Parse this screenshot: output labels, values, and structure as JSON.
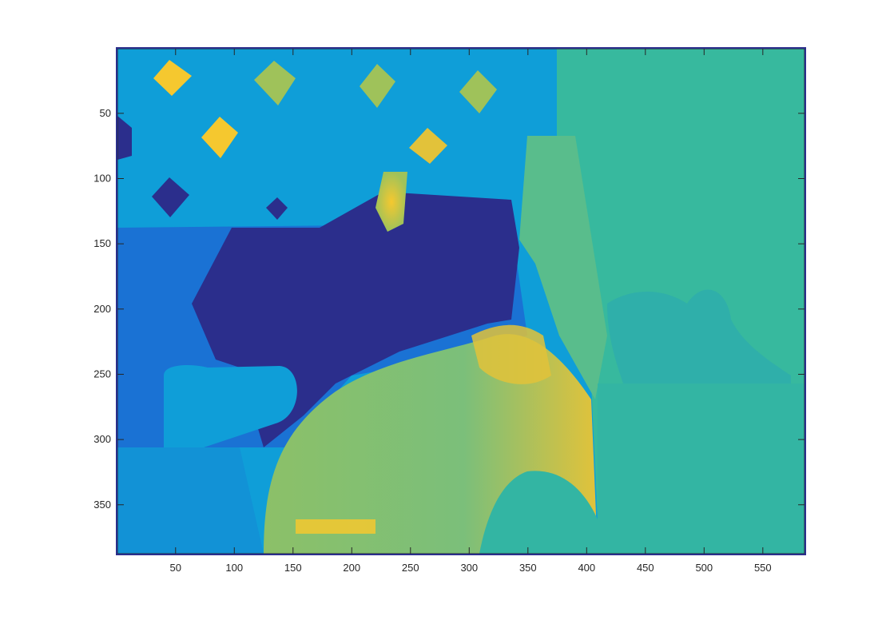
{
  "chart_data": {
    "type": "heatmap",
    "title": "",
    "xlabel": "",
    "ylabel": "",
    "xlim": [
      0.5,
      585.5
    ],
    "ylim": [
      0.5,
      387.5
    ],
    "y_reversed": true,
    "grid": false,
    "colormap": "parula",
    "colors": {
      "low": "#2a2f88",
      "mid_low": "#1f6fd0",
      "mid": "#0aa6d8",
      "mid_high": "#35b89f",
      "high_mid": "#9fc25a",
      "high": "#f5c82f"
    },
    "x_ticks": [
      {
        "value": 50,
        "label": "50"
      },
      {
        "value": 100,
        "label": "100"
      },
      {
        "value": 150,
        "label": "150"
      },
      {
        "value": 200,
        "label": "200"
      },
      {
        "value": 250,
        "label": "250"
      },
      {
        "value": 300,
        "label": "300"
      },
      {
        "value": 350,
        "label": "350"
      },
      {
        "value": 400,
        "label": "400"
      },
      {
        "value": 450,
        "label": "450"
      },
      {
        "value": 500,
        "label": "500"
      },
      {
        "value": 550,
        "label": "550"
      }
    ],
    "y_ticks": [
      {
        "value": 50,
        "label": "50"
      },
      {
        "value": 100,
        "label": "100"
      },
      {
        "value": 150,
        "label": "150"
      },
      {
        "value": 200,
        "label": "200"
      },
      {
        "value": 250,
        "label": "250"
      },
      {
        "value": 300,
        "label": "300"
      },
      {
        "value": 350,
        "label": "350"
      }
    ]
  }
}
